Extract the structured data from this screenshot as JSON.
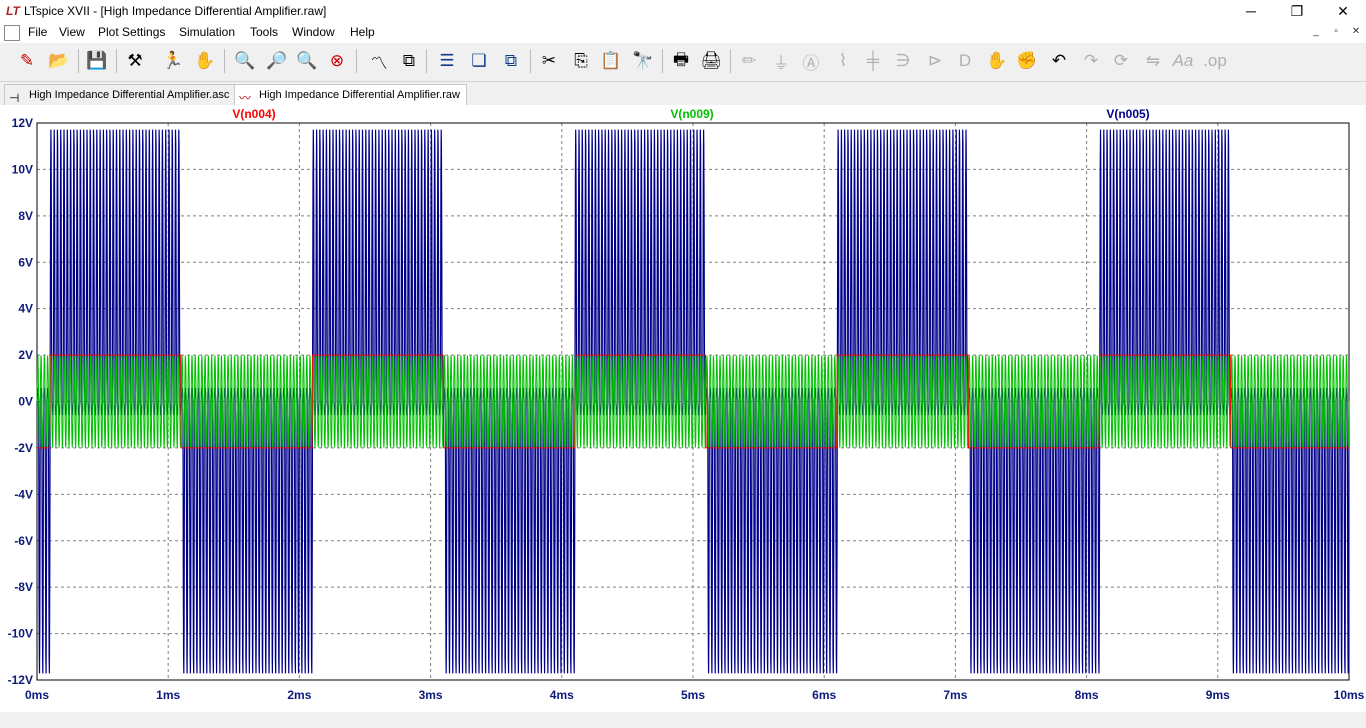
{
  "window": {
    "title": "LTspice XVII - [High Impedance Differential Amplifier.raw]",
    "app_logo": "LT",
    "minimize": "─",
    "maximize": "❐",
    "close": "✕"
  },
  "menu": {
    "items": [
      "File",
      "View",
      "Plot Settings",
      "Simulation",
      "Tools",
      "Window",
      "Help"
    ],
    "mdi_minimize": "_",
    "mdi_restore": "▫",
    "mdi_close": "✕"
  },
  "toolbar": {
    "icons": [
      "new-schematic-icon",
      "open-icon",
      "save-icon",
      "control-panel-icon",
      "run-icon",
      "halt-icon",
      "zoom-in-icon",
      "zoom-box-icon",
      "zoom-out-icon",
      "zoom-full-icon",
      "autorange-icon",
      "split-plot-icon",
      "tile-horizontal-icon",
      "cascade-icon",
      "tile-vertical-icon",
      "cut-icon",
      "copy-icon",
      "paste-icon",
      "find-icon",
      "print-icon",
      "print-setup-icon",
      "draw-wire-icon",
      "ground-icon",
      "label-net-icon",
      "resistor-icon",
      "capacitor-icon",
      "inductor-icon",
      "diode-icon",
      "component-icon",
      "move-icon",
      "drag-icon",
      "undo-icon",
      "redo-icon",
      "rotate-icon",
      "mirror-icon",
      "text-icon",
      "spice-directive-icon"
    ]
  },
  "tabs": [
    {
      "label": "High Impedance Differential Amplifier.asc",
      "icon": "schematic-icon",
      "active": false
    },
    {
      "label": "High Impedance Differential Amplifier.raw",
      "icon": "waveform-icon",
      "active": true
    }
  ],
  "chart_data": {
    "type": "line",
    "title": "",
    "xlabel": "",
    "ylabel": "",
    "xlim": [
      0,
      10
    ],
    "ylim": [
      -12,
      12
    ],
    "x_unit": "ms",
    "y_unit": "V",
    "x_ticks": [
      "0ms",
      "1ms",
      "2ms",
      "3ms",
      "4ms",
      "5ms",
      "6ms",
      "7ms",
      "8ms",
      "9ms",
      "10ms"
    ],
    "y_ticks": [
      "12V",
      "10V",
      "8V",
      "6V",
      "4V",
      "2V",
      "0V",
      "-2V",
      "-4V",
      "-6V",
      "-8V",
      "-10V",
      "-12V"
    ],
    "grid": true,
    "legend_placement": "top",
    "series": [
      {
        "name": "V(n004)",
        "color": "#ff0000",
        "shape": "square",
        "amplitude": 2,
        "frequency_khz": 1.0,
        "phase_ms": 0.0,
        "note_values": "square wave ±2V"
      },
      {
        "name": "V(n009)",
        "color": "#00c000",
        "shape": "sine",
        "amplitude": 2,
        "frequency_khz": 40,
        "offset": 0
      },
      {
        "name": "V(n005)",
        "color": "#00008b",
        "shape": "modulated-sine",
        "amplitude": 11.8,
        "frequency_khz": 40,
        "envelope": "follows V(n004): oscillation clipped to +12V when high, -12V when low"
      }
    ],
    "legend": [
      {
        "name": "V(n004)",
        "color": "#ff0000"
      },
      {
        "name": "V(n009)",
        "color": "#00c000"
      },
      {
        "name": "V(n005)",
        "color": "#00008b"
      }
    ]
  }
}
